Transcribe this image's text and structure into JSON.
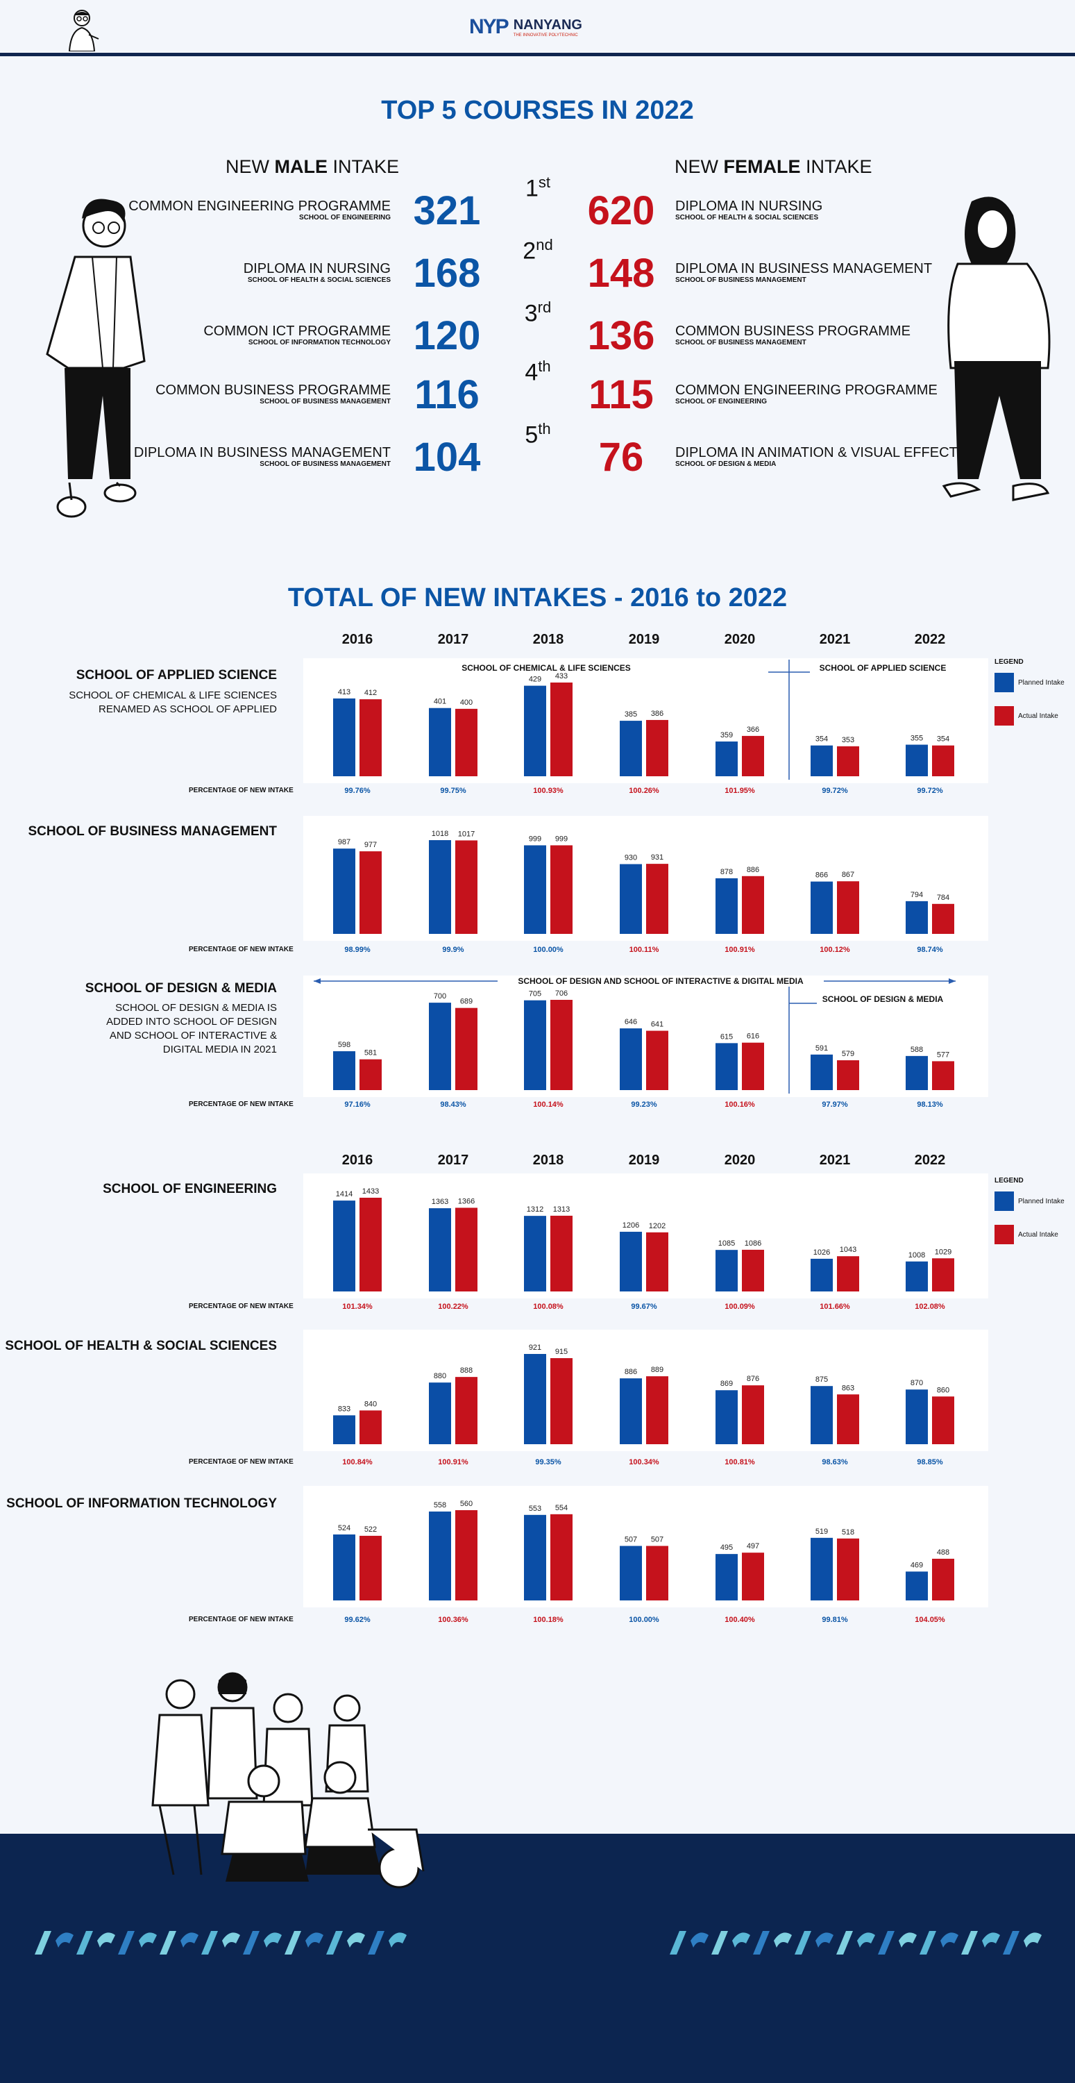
{
  "header": {
    "logo_mark": "NYP",
    "logo_name": "NANYANG",
    "logo_tagline": "THE INNOVATIVE POLYTECHNIC"
  },
  "colors": {
    "navy": "#10264f",
    "blue": "#0b55a6",
    "red": "#c5121c",
    "planned": "#0b4ea6",
    "actual": "#c5121c"
  },
  "top5": {
    "title": "TOP 5 COURSES IN 2022",
    "male_head": [
      "NEW ",
      "MALE",
      " INTAKE"
    ],
    "female_head": [
      "NEW ",
      "FEMALE",
      " INTAKE"
    ],
    "ranks": [
      {
        "n": "1",
        "s": "st"
      },
      {
        "n": "2",
        "s": "nd"
      },
      {
        "n": "3",
        "s": "rd"
      },
      {
        "n": "4",
        "s": "th"
      },
      {
        "n": "5",
        "s": "th"
      }
    ],
    "male": [
      {
        "course": "COMMON ENGINEERING PROGRAMME",
        "school": "SCHOOL OF ENGINEERING",
        "value": "321"
      },
      {
        "course": "DIPLOMA IN NURSING",
        "school": "SCHOOL OF HEALTH & SOCIAL SCIENCES",
        "value": "168"
      },
      {
        "course": "COMMON ICT PROGRAMME",
        "school": "SCHOOL OF INFORMATION TECHNOLOGY",
        "value": "120"
      },
      {
        "course": "COMMON BUSINESS PROGRAMME",
        "school": "SCHOOL OF BUSINESS MANAGEMENT",
        "value": "116"
      },
      {
        "course": "DIPLOMA IN BUSINESS MANAGEMENT",
        "school": "SCHOOL OF BUSINESS MANAGEMENT",
        "value": "104"
      }
    ],
    "female": [
      {
        "course": "DIPLOMA IN NURSING",
        "school": "SCHOOL OF HEALTH & SOCIAL SCIENCES",
        "value": "620"
      },
      {
        "course": "DIPLOMA IN BUSINESS MANAGEMENT",
        "school": "SCHOOL OF BUSINESS MANAGEMENT",
        "value": "148"
      },
      {
        "course": "COMMON BUSINESS PROGRAMME",
        "school": "SCHOOL OF BUSINESS MANAGEMENT",
        "value": "136"
      },
      {
        "course": "COMMON ENGINEERING PROGRAMME",
        "school": "SCHOOL OF ENGINEERING",
        "value": "115"
      },
      {
        "course": "DIPLOMA IN ANIMATION & VISUAL EFFECTS",
        "school": "SCHOOL OF DESIGN & MEDIA",
        "value": "76"
      }
    ]
  },
  "intakes": {
    "title": "TOTAL OF NEW INTAKES - 2016 to 2022",
    "pct_label": "PERCENTAGE OF NEW INTAKE",
    "legend": {
      "title": "LEGEND",
      "planned": "Planned Intake",
      "actual": "Actual Intake"
    }
  },
  "chart_data": {
    "type": "bar",
    "categories": [
      "2016",
      "2017",
      "2018",
      "2019",
      "2020",
      "2021",
      "2022"
    ],
    "legend": [
      "Planned Intake",
      "Actual Intake"
    ],
    "legend_position": "right",
    "grid": false,
    "charts": [
      {
        "school": "SCHOOL OF APPLIED SCIENCE",
        "note": [
          "SCHOOL OF CHEMICAL & LIFE SCIENCES",
          "RENAMED AS SCHOOL OF APPLIED"
        ],
        "annotation_left": "SCHOOL OF CHEMICAL & LIFE SCIENCES",
        "annotation_right": "SCHOOL OF APPLIED SCIENCE",
        "planned": [
          413,
          401,
          429,
          385,
          359,
          354,
          355
        ],
        "actual": [
          412,
          400,
          433,
          386,
          366,
          353,
          354
        ],
        "pct": [
          "99.76%",
          "99.75%",
          "100.93%",
          "100.26%",
          "101.95%",
          "99.72%",
          "99.72%"
        ]
      },
      {
        "school": "SCHOOL OF BUSINESS MANAGEMENT",
        "note": [],
        "planned": [
          987,
          1018,
          999,
          930,
          878,
          866,
          794
        ],
        "actual": [
          977,
          1017,
          999,
          931,
          886,
          867,
          784
        ],
        "pct": [
          "98.99%",
          "99.9%",
          "100.00%",
          "100.11%",
          "100.91%",
          "100.12%",
          "98.74%"
        ]
      },
      {
        "school": "SCHOOL OF DESIGN & MEDIA",
        "note": [
          "SCHOOL OF DESIGN & MEDIA IS",
          "ADDED INTO SCHOOL OF DESIGN",
          "AND SCHOOL OF INTERACTIVE &",
          "DIGITAL MEDIA IN 2021"
        ],
        "annotation_left": "SCHOOL OF DESIGN AND SCHOOL OF INTERACTIVE & DIGITAL MEDIA",
        "annotation_right": "SCHOOL OF DESIGN & MEDIA",
        "planned": [
          598,
          700,
          705,
          646,
          615,
          591,
          588
        ],
        "actual": [
          581,
          689,
          706,
          641,
          616,
          579,
          577
        ],
        "pct": [
          "97.16%",
          "98.43%",
          "100.14%",
          "99.23%",
          "100.16%",
          "97.97%",
          "98.13%"
        ]
      },
      {
        "school": "SCHOOL OF ENGINEERING",
        "note": [],
        "planned": [
          1414,
          1363,
          1312,
          1206,
          1085,
          1026,
          1008
        ],
        "actual": [
          1433,
          1366,
          1313,
          1202,
          1086,
          1043,
          1029
        ],
        "pct": [
          "101.34%",
          "100.22%",
          "100.08%",
          "99.67%",
          "100.09%",
          "101.66%",
          "102.08%"
        ]
      },
      {
        "school": "SCHOOL OF HEALTH & SOCIAL SCIENCES",
        "note": [],
        "planned": [
          833,
          880,
          921,
          886,
          869,
          875,
          870
        ],
        "actual": [
          840,
          888,
          915,
          889,
          876,
          863,
          860
        ],
        "pct": [
          "100.84%",
          "100.91%",
          "99.35%",
          "100.34%",
          "100.81%",
          "98.63%",
          "98.85%"
        ]
      },
      {
        "school": "SCHOOL OF INFORMATION TECHNOLOGY",
        "note": [],
        "planned": [
          524,
          558,
          553,
          507,
          495,
          519,
          469
        ],
        "actual": [
          522,
          560,
          554,
          507,
          497,
          518,
          488
        ],
        "pct": [
          "99.62%",
          "100.36%",
          "100.18%",
          "100.00%",
          "100.40%",
          "99.81%",
          "104.05%"
        ]
      }
    ]
  }
}
